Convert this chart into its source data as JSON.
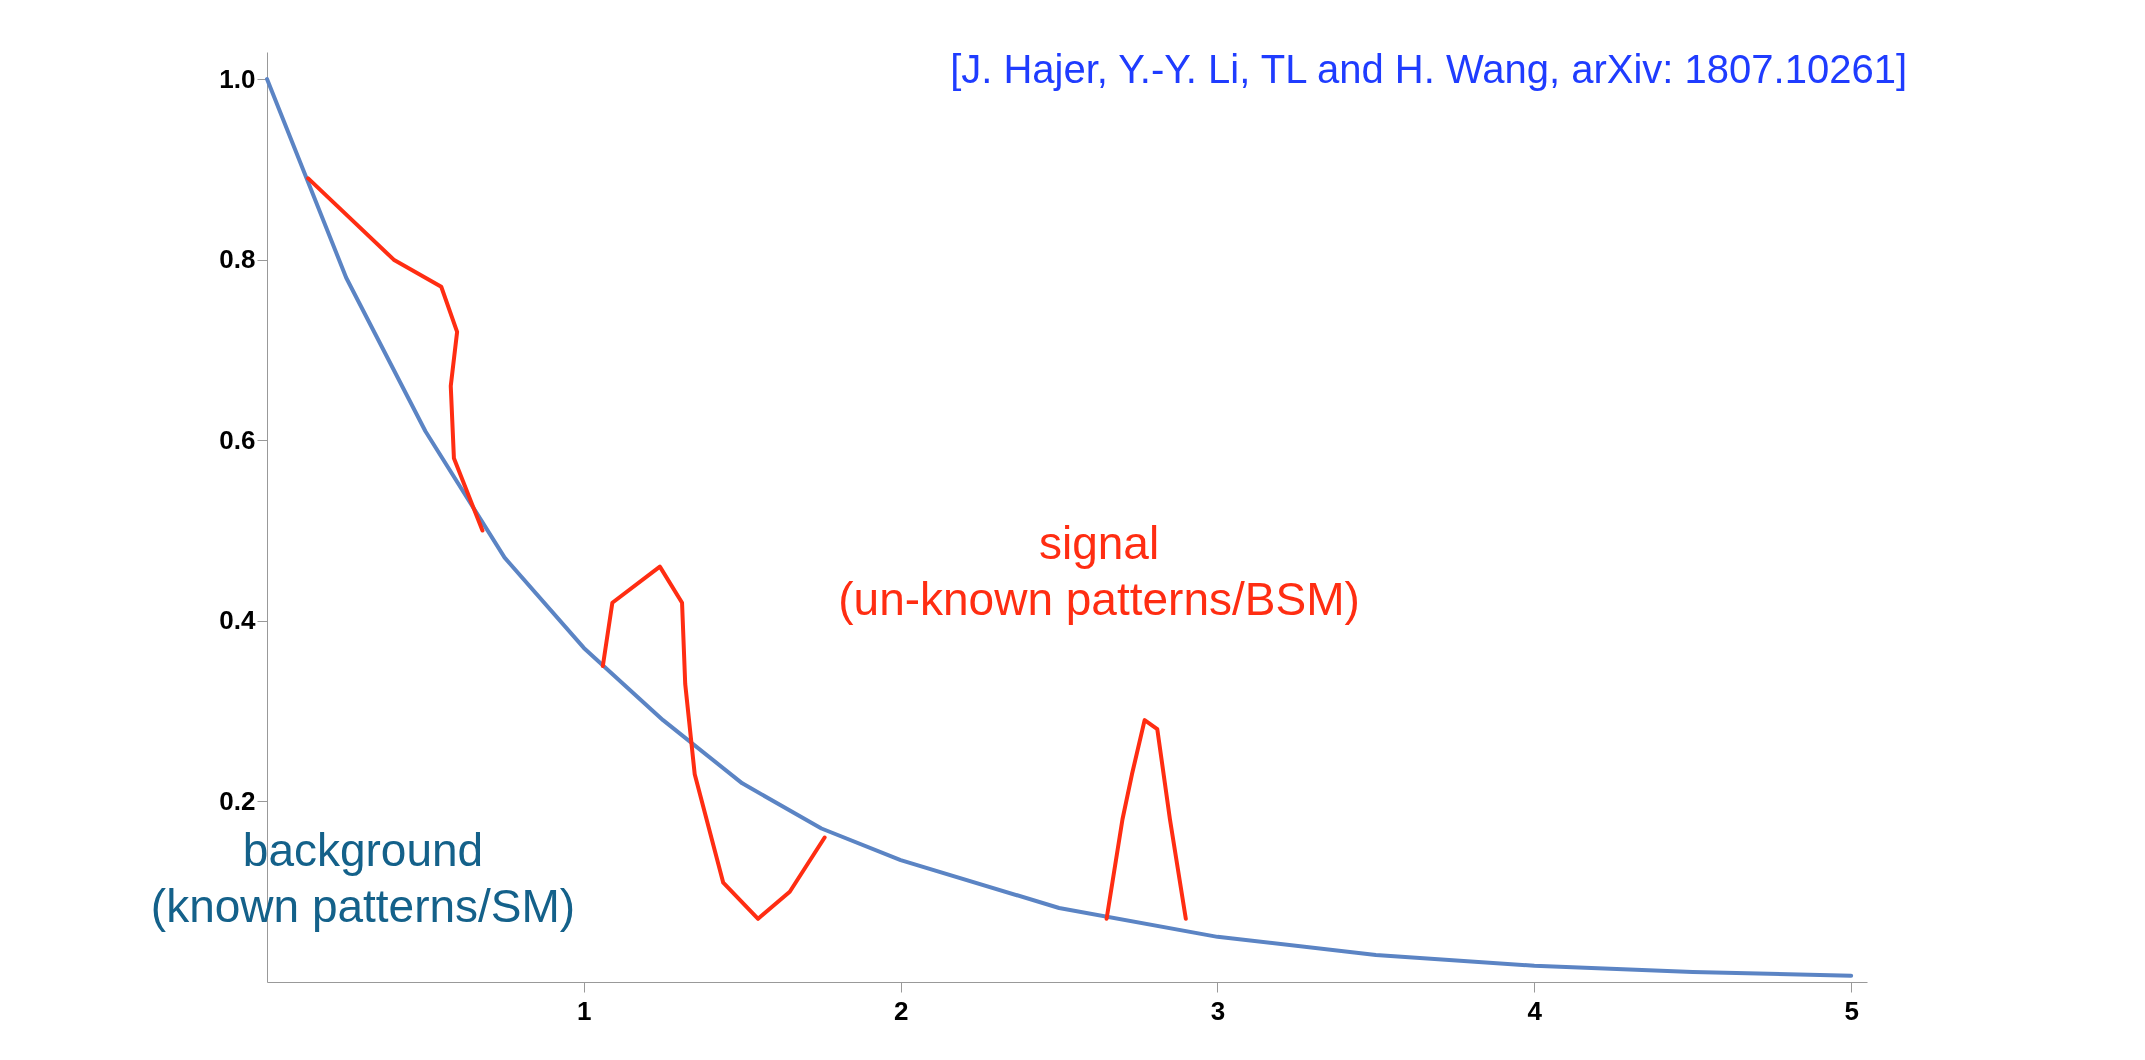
{
  "chart_data": {
    "type": "line",
    "xlim": [
      0,
      5.05
    ],
    "ylim": [
      0,
      1.03
    ],
    "xticks": [
      1,
      2,
      3,
      4,
      5
    ],
    "yticks": [
      {
        "value": 0.2,
        "label": "0.2"
      },
      {
        "value": 0.4,
        "label": "0.4"
      },
      {
        "value": 0.6,
        "label": "0.6"
      },
      {
        "value": 0.8,
        "label": "0.8"
      },
      {
        "value": 1,
        "label": "1.0"
      }
    ],
    "grid": false,
    "legend": false,
    "marker": "none",
    "line_style": "solid",
    "series": [
      {
        "color": "#5b84c4",
        "x": [
          0,
          0.25,
          0.5,
          0.75,
          1,
          1.25,
          1.5,
          1.75,
          2,
          2.5,
          3,
          3.5,
          4,
          4.5,
          5
        ],
        "values": [
          1,
          0.78,
          0.61,
          0.47,
          0.37,
          0.29,
          0.22,
          0.17,
          0.135,
          0.082,
          0.05,
          0.03,
          0.018,
          0.011,
          0.007
        ]
      },
      {
        "color": "#ff2d12",
        "x": [
          0.13,
          0.4,
          0.55,
          0.6,
          0.58,
          0.59,
          0.68
        ],
        "values": [
          0.89,
          0.8,
          0.77,
          0.72,
          0.66,
          0.58,
          0.5
        ]
      },
      {
        "color": "#ff2d12",
        "x": [
          1.06,
          1.09,
          1.24,
          1.31,
          1.32,
          1.35,
          1.44,
          1.55,
          1.65,
          1.76
        ],
        "values": [
          0.35,
          0.42,
          0.46,
          0.42,
          0.33,
          0.23,
          0.11,
          0.07,
          0.1,
          0.16
        ]
      },
      {
        "color": "#ff2d12",
        "x": [
          2.65,
          2.7,
          2.73,
          2.77,
          2.81,
          2.85,
          2.9
        ],
        "values": [
          0.07,
          0.18,
          0.23,
          0.29,
          0.28,
          0.18,
          0.07
        ]
      }
    ],
    "annotations": [
      "signal\n(un-known patterns/BSM)",
      "background\n(known patterns/SM)",
      "[J. Hajer, Y.-Y. Li, TL and H. Wang, arXiv: 1807.10261]"
    ]
  }
}
